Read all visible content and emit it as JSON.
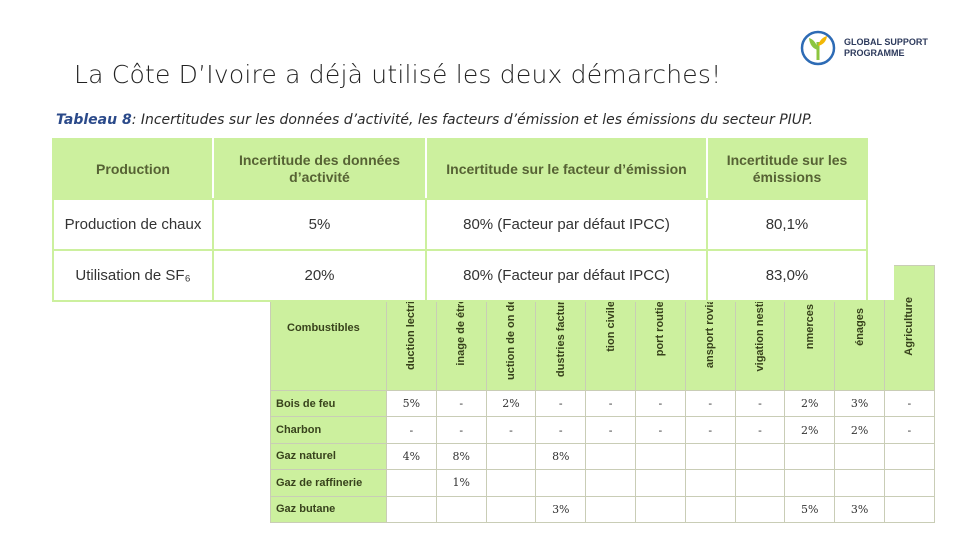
{
  "slide": {
    "title": "La Côte D’Ivoire a déjà utilisé les deux démarches!"
  },
  "logo": {
    "line1": "GLOBAL SUPPORT",
    "line2": "PROGRAMME",
    "icon": "leaf-sprout-icon",
    "colors": {
      "green": "#8cc63f",
      "blue": "#2d6bb5"
    }
  },
  "table8": {
    "caption_label": "Tableau 8",
    "caption_text": ": Incertitudes sur les données d’activité, les facteurs d’émission et les émissions du secteur PIUP.",
    "headers": [
      "Production",
      "Incertitude des données d’activité",
      "Incertitude sur le facteur d’émission",
      "Incertitude sur les émissions"
    ],
    "rows": [
      [
        "Production de chaux",
        "5%",
        "80% (Facteur par défaut IPCC)",
        "80,1%"
      ],
      [
        "Utilisation de SF₆",
        "20%",
        "80% (Facteur par défaut IPCC)",
        "83,0%"
      ]
    ]
  },
  "table_fuels": {
    "header_first": "Combustibles",
    "columns": [
      "duction lectricité",
      "inage de étrole",
      "uction de on de bois",
      "dustries facturières",
      "tion civile",
      "port routier",
      "ansport roviaire",
      "vigation nestique",
      "nmerces",
      "énages",
      "Agriculture"
    ],
    "rows": [
      {
        "fuel": "Bois de feu",
        "values": [
          "5%",
          "-",
          "2%",
          "-",
          "-",
          "-",
          "-",
          "-",
          "2%",
          "3%",
          "-"
        ]
      },
      {
        "fuel": "Charbon",
        "values": [
          "-",
          "-",
          "-",
          "-",
          "-",
          "-",
          "-",
          "-",
          "2%",
          "2%",
          "-"
        ]
      },
      {
        "fuel": "Gaz naturel",
        "values": [
          "4%",
          "8%",
          "",
          "8%",
          "",
          "",
          "",
          "",
          "",
          "",
          ""
        ]
      },
      {
        "fuel": "Gaz de raffinerie",
        "values": [
          "",
          "1%",
          "",
          "",
          "",
          "",
          "",
          "",
          "",
          "",
          ""
        ]
      },
      {
        "fuel": "Gaz butane",
        "values": [
          "",
          "",
          "",
          "3%",
          "",
          "",
          "",
          "",
          "5%",
          "3%",
          ""
        ]
      }
    ]
  },
  "colors": {
    "header_green": "#ccf09e",
    "caption_blue": "#2b4a8a"
  }
}
